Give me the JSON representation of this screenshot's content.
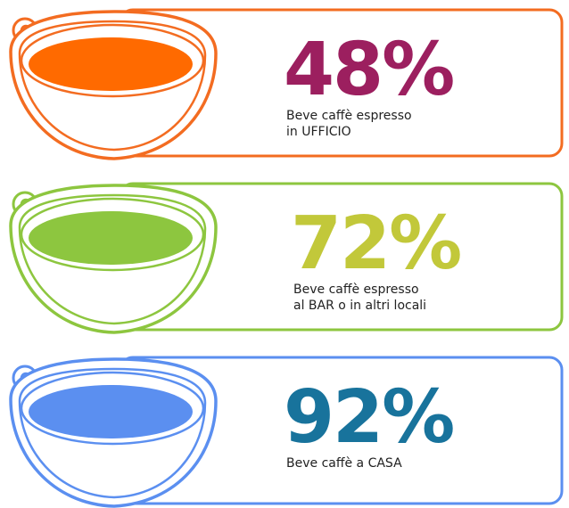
{
  "items": [
    {
      "percent": "48%",
      "lines": [
        "Beve caffè espresso",
        "in UFFICIO"
      ]
    },
    {
      "percent": "72%",
      "lines": [
        "Beve caffè espresso",
        "al BAR o in altri locali"
      ]
    },
    {
      "percent": "92%",
      "lines": [
        "Beve caffè a CASA"
      ]
    }
  ]
}
